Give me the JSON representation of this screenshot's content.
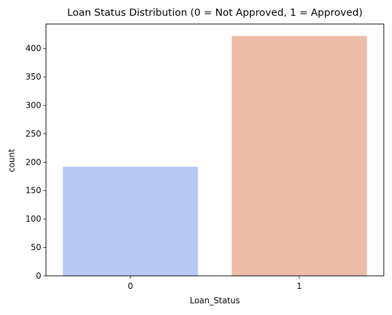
{
  "chart_data": {
    "type": "bar",
    "title": "Loan Status Distribution (0 = Not Approved, 1 = Approved)",
    "xlabel": "Loan_Status",
    "ylabel": "count",
    "categories": [
      "0",
      "1"
    ],
    "values": [
      192,
      422
    ],
    "colors": [
      "#b5c9f3",
      "#ecbca6"
    ],
    "ylim": [
      0,
      443
    ],
    "yticks": [
      0,
      50,
      100,
      150,
      200,
      250,
      300,
      350,
      400
    ],
    "grid": false,
    "legend": "none"
  }
}
